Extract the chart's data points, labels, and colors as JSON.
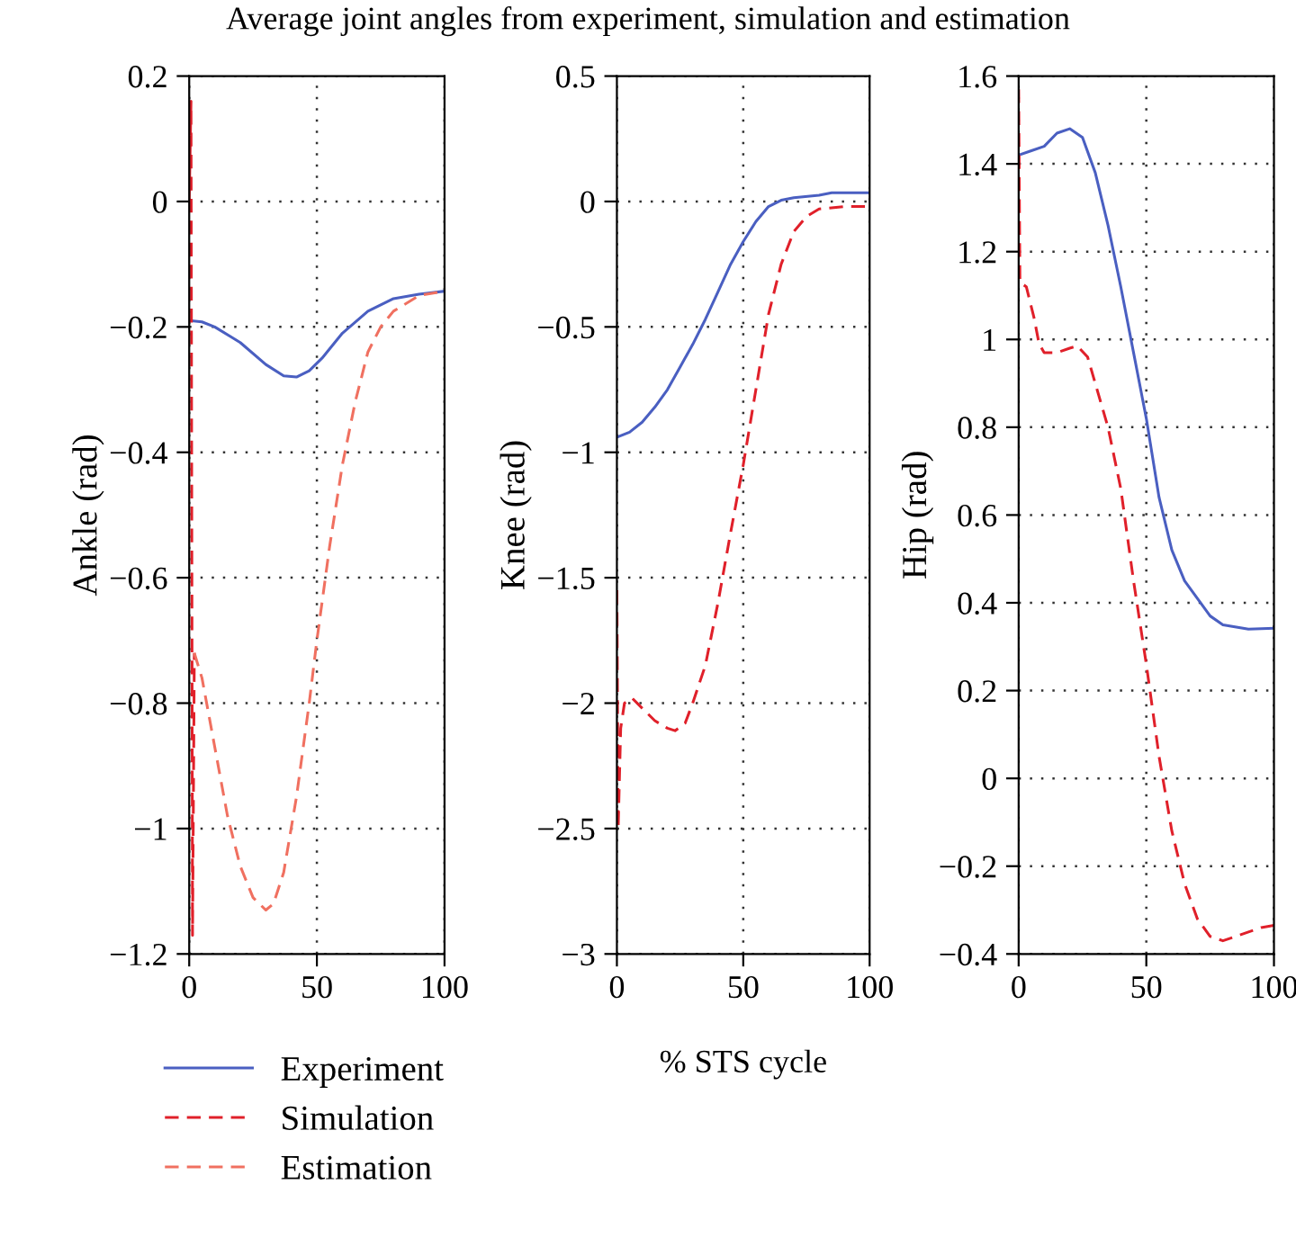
{
  "chart_data": [
    {
      "type": "line",
      "ylabel": "Ankle (rad)",
      "xlim": [
        0,
        100
      ],
      "xticks": [
        0,
        50,
        100
      ],
      "ylim": [
        -1.2,
        0.2
      ],
      "yticks": [
        -1.2,
        -1,
        -0.8,
        -0.6,
        -0.4,
        -0.2,
        0,
        0.2
      ],
      "grid": true,
      "legend": "bottom left",
      "series": [
        {
          "name": "Experiment",
          "color": "#4a5fc1",
          "line_style": "solid",
          "x": [
            0,
            5,
            10,
            20,
            30,
            37,
            42,
            47,
            52,
            60,
            70,
            80,
            90,
            100
          ],
          "values": [
            -0.19,
            -0.192,
            -0.2,
            -0.225,
            -0.26,
            -0.278,
            -0.28,
            -0.27,
            -0.25,
            -0.21,
            -0.175,
            -0.155,
            -0.148,
            -0.143
          ]
        },
        {
          "name": "Simulation",
          "color": "#e0202a",
          "line_style": "dashed",
          "x": [
            0,
            0.7,
            1.3,
            2
          ],
          "values": [
            0,
            0.16,
            -1.17,
            -0.72
          ]
        },
        {
          "name": "Estimation",
          "color": "#f07060",
          "line_style": "dashed",
          "x": [
            2,
            5,
            10,
            15,
            20,
            25,
            30,
            33,
            37,
            42,
            47,
            50,
            55,
            60,
            65,
            70,
            75,
            80,
            90,
            100
          ],
          "values": [
            -0.72,
            -0.76,
            -0.87,
            -0.98,
            -1.06,
            -1.11,
            -1.13,
            -1.12,
            -1.07,
            -0.95,
            -0.8,
            -0.7,
            -0.55,
            -0.42,
            -0.32,
            -0.24,
            -0.2,
            -0.175,
            -0.15,
            -0.143
          ]
        }
      ]
    },
    {
      "type": "line",
      "title": "Average joint angles from experiment, simulation and estimation",
      "xlabel": "% STS cycle",
      "ylabel": "Knee (rad)",
      "xlim": [
        0,
        100
      ],
      "xticks": [
        0,
        50,
        100
      ],
      "ylim": [
        -3,
        0.5
      ],
      "yticks": [
        -3,
        -2.5,
        -2,
        -1.5,
        -1,
        -0.5,
        0,
        0.5
      ],
      "grid": true,
      "series": [
        {
          "color": "#4a5fc1",
          "line_style": "solid",
          "x": [
            0,
            5,
            10,
            15,
            20,
            25,
            30,
            35,
            40,
            45,
            50,
            55,
            60,
            65,
            70,
            80,
            85,
            100
          ],
          "values": [
            -0.94,
            -0.92,
            -0.88,
            -0.82,
            -0.75,
            -0.66,
            -0.57,
            -0.47,
            -0.36,
            -0.25,
            -0.16,
            -0.08,
            -0.02,
            0.005,
            0.015,
            0.025,
            0.035,
            0.035
          ]
        },
        {
          "color": "#e0202a",
          "line_style": "dashed",
          "x": [
            0,
            0.5,
            1.5,
            3,
            6,
            10,
            15,
            20,
            23,
            27,
            30,
            35,
            40,
            45,
            50,
            55,
            60,
            65,
            70,
            75,
            80,
            90,
            100
          ],
          "values": [
            -1.55,
            -2.5,
            -2.1,
            -2.0,
            -1.98,
            -2.02,
            -2.07,
            -2.1,
            -2.11,
            -2.08,
            -2.0,
            -1.85,
            -1.6,
            -1.32,
            -1.05,
            -0.75,
            -0.45,
            -0.25,
            -0.12,
            -0.06,
            -0.03,
            -0.02,
            -0.02
          ]
        }
      ]
    },
    {
      "type": "line",
      "ylabel": "Hip (rad)",
      "xlim": [
        0,
        100
      ],
      "xticks": [
        0,
        50,
        100
      ],
      "ylim": [
        -0.4,
        1.6
      ],
      "yticks": [
        -0.4,
        -0.2,
        0,
        0.2,
        0.4,
        0.6,
        0.8,
        1,
        1.2,
        1.4,
        1.6
      ],
      "grid": true,
      "series": [
        {
          "color": "#4a5fc1",
          "line_style": "solid",
          "x": [
            0,
            5,
            10,
            15,
            20,
            25,
            30,
            35,
            40,
            45,
            50,
            55,
            60,
            65,
            70,
            75,
            80,
            90,
            100
          ],
          "values": [
            1.42,
            1.43,
            1.44,
            1.47,
            1.48,
            1.46,
            1.38,
            1.26,
            1.12,
            0.97,
            0.82,
            0.64,
            0.52,
            0.45,
            0.41,
            0.37,
            0.35,
            0.34,
            0.342
          ]
        },
        {
          "color": "#e0202a",
          "line_style": "dashed",
          "x": [
            0,
            0.5,
            3,
            6,
            8,
            10,
            15,
            20,
            23,
            27,
            30,
            35,
            40,
            45,
            50,
            55,
            60,
            65,
            70,
            75,
            80,
            85,
            90,
            95,
            100
          ],
          "values": [
            1.57,
            1.13,
            1.12,
            1.05,
            0.99,
            0.97,
            0.97,
            0.98,
            0.985,
            0.96,
            0.9,
            0.8,
            0.66,
            0.45,
            0.26,
            0.05,
            -0.12,
            -0.24,
            -0.32,
            -0.36,
            -0.37,
            -0.36,
            -0.35,
            -0.34,
            -0.335
          ]
        }
      ]
    }
  ]
}
